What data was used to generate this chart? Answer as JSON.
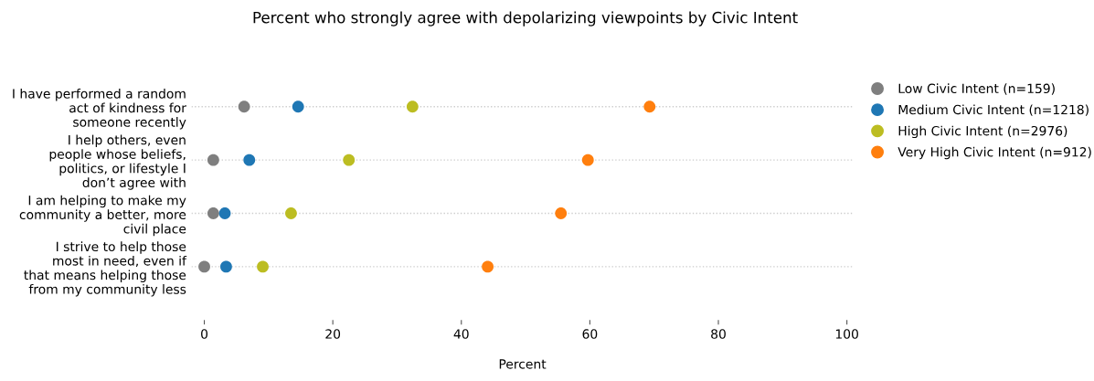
{
  "chart_data": {
    "type": "scatter",
    "title": "Percent who strongly agree with depolarizing viewpoints by Civic Intent",
    "xlabel": "Percent",
    "orientation": "horizontal",
    "categories": [
      "I have performed a random\nact of kindness for\nsomeone recently",
      "I help others, even\npeople whose beliefs,\npolitics, or lifestyle I\ndon’t agree with",
      "I am helping to make my\ncommunity a better, more\ncivil place",
      "I strive to help those\nmost in need, even if\nthat means helping those\nfrom my community less"
    ],
    "series": [
      {
        "name": "Low Civic Intent (n=159)",
        "color": "#7f7f7f",
        "values": [
          6.2,
          1.4,
          1.4,
          0
        ]
      },
      {
        "name": "Medium Civic Intent (n=1218)",
        "color": "#1f77b4",
        "values": [
          14.6,
          7.0,
          3.2,
          3.4
        ]
      },
      {
        "name": "High Civic Intent (n=2976)",
        "color": "#bcbd22",
        "values": [
          32.4,
          22.5,
          13.5,
          9.1
        ]
      },
      {
        "name": "Very High Civic Intent (n=912)",
        "color": "#ff7f0e",
        "values": [
          69.3,
          59.7,
          55.5,
          44.1
        ]
      }
    ],
    "xlim": [
      -2,
      101
    ],
    "xticks": [
      0,
      20,
      40,
      60,
      80,
      100
    ],
    "grid": "y",
    "legend": "right",
    "marker": "circle",
    "line_style": "dotted"
  }
}
